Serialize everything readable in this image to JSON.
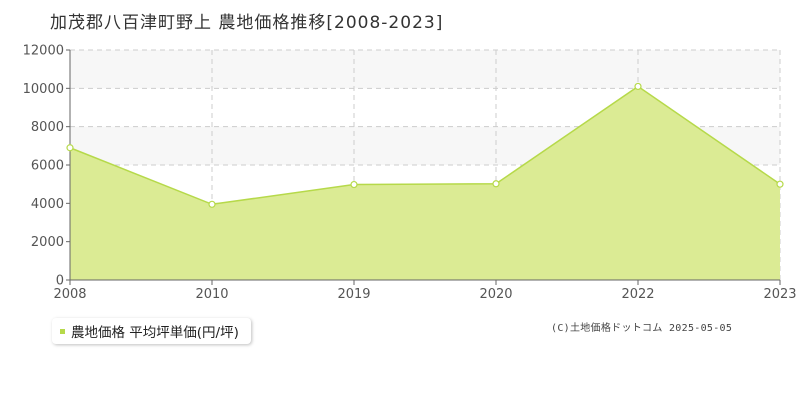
{
  "header": {
    "title": "加茂郡八百津町野上 農地価格推移[2008-2023]"
  },
  "legend": {
    "label": "農地価格 平均坪単価(円/坪)",
    "color": "#b6d94a"
  },
  "footer": {
    "copyright": "(C)土地価格ドットコム 2025-05-05"
  },
  "colors": {
    "area_fill": "#dbeb94",
    "line": "#b6d94a",
    "grid": "#cccccc",
    "band": "#f7f7f7"
  },
  "chart_data": {
    "type": "area",
    "title": "加茂郡八百津町野上 農地価格推移[2008-2023]",
    "xlabel": "",
    "ylabel": "",
    "categories": [
      "2008",
      "2010",
      "2019",
      "2020",
      "2022",
      "2023"
    ],
    "series": [
      {
        "name": "農地価格 平均坪単価(円/坪)",
        "values": [
          6900,
          3950,
          4980,
          5020,
          10100,
          5000
        ]
      }
    ],
    "ylim": [
      0,
      12000
    ],
    "yticks": [
      "0",
      "2000",
      "4000",
      "6000",
      "8000",
      "10000",
      "12000"
    ],
    "grid": true,
    "legend_position": "bottom-left"
  }
}
